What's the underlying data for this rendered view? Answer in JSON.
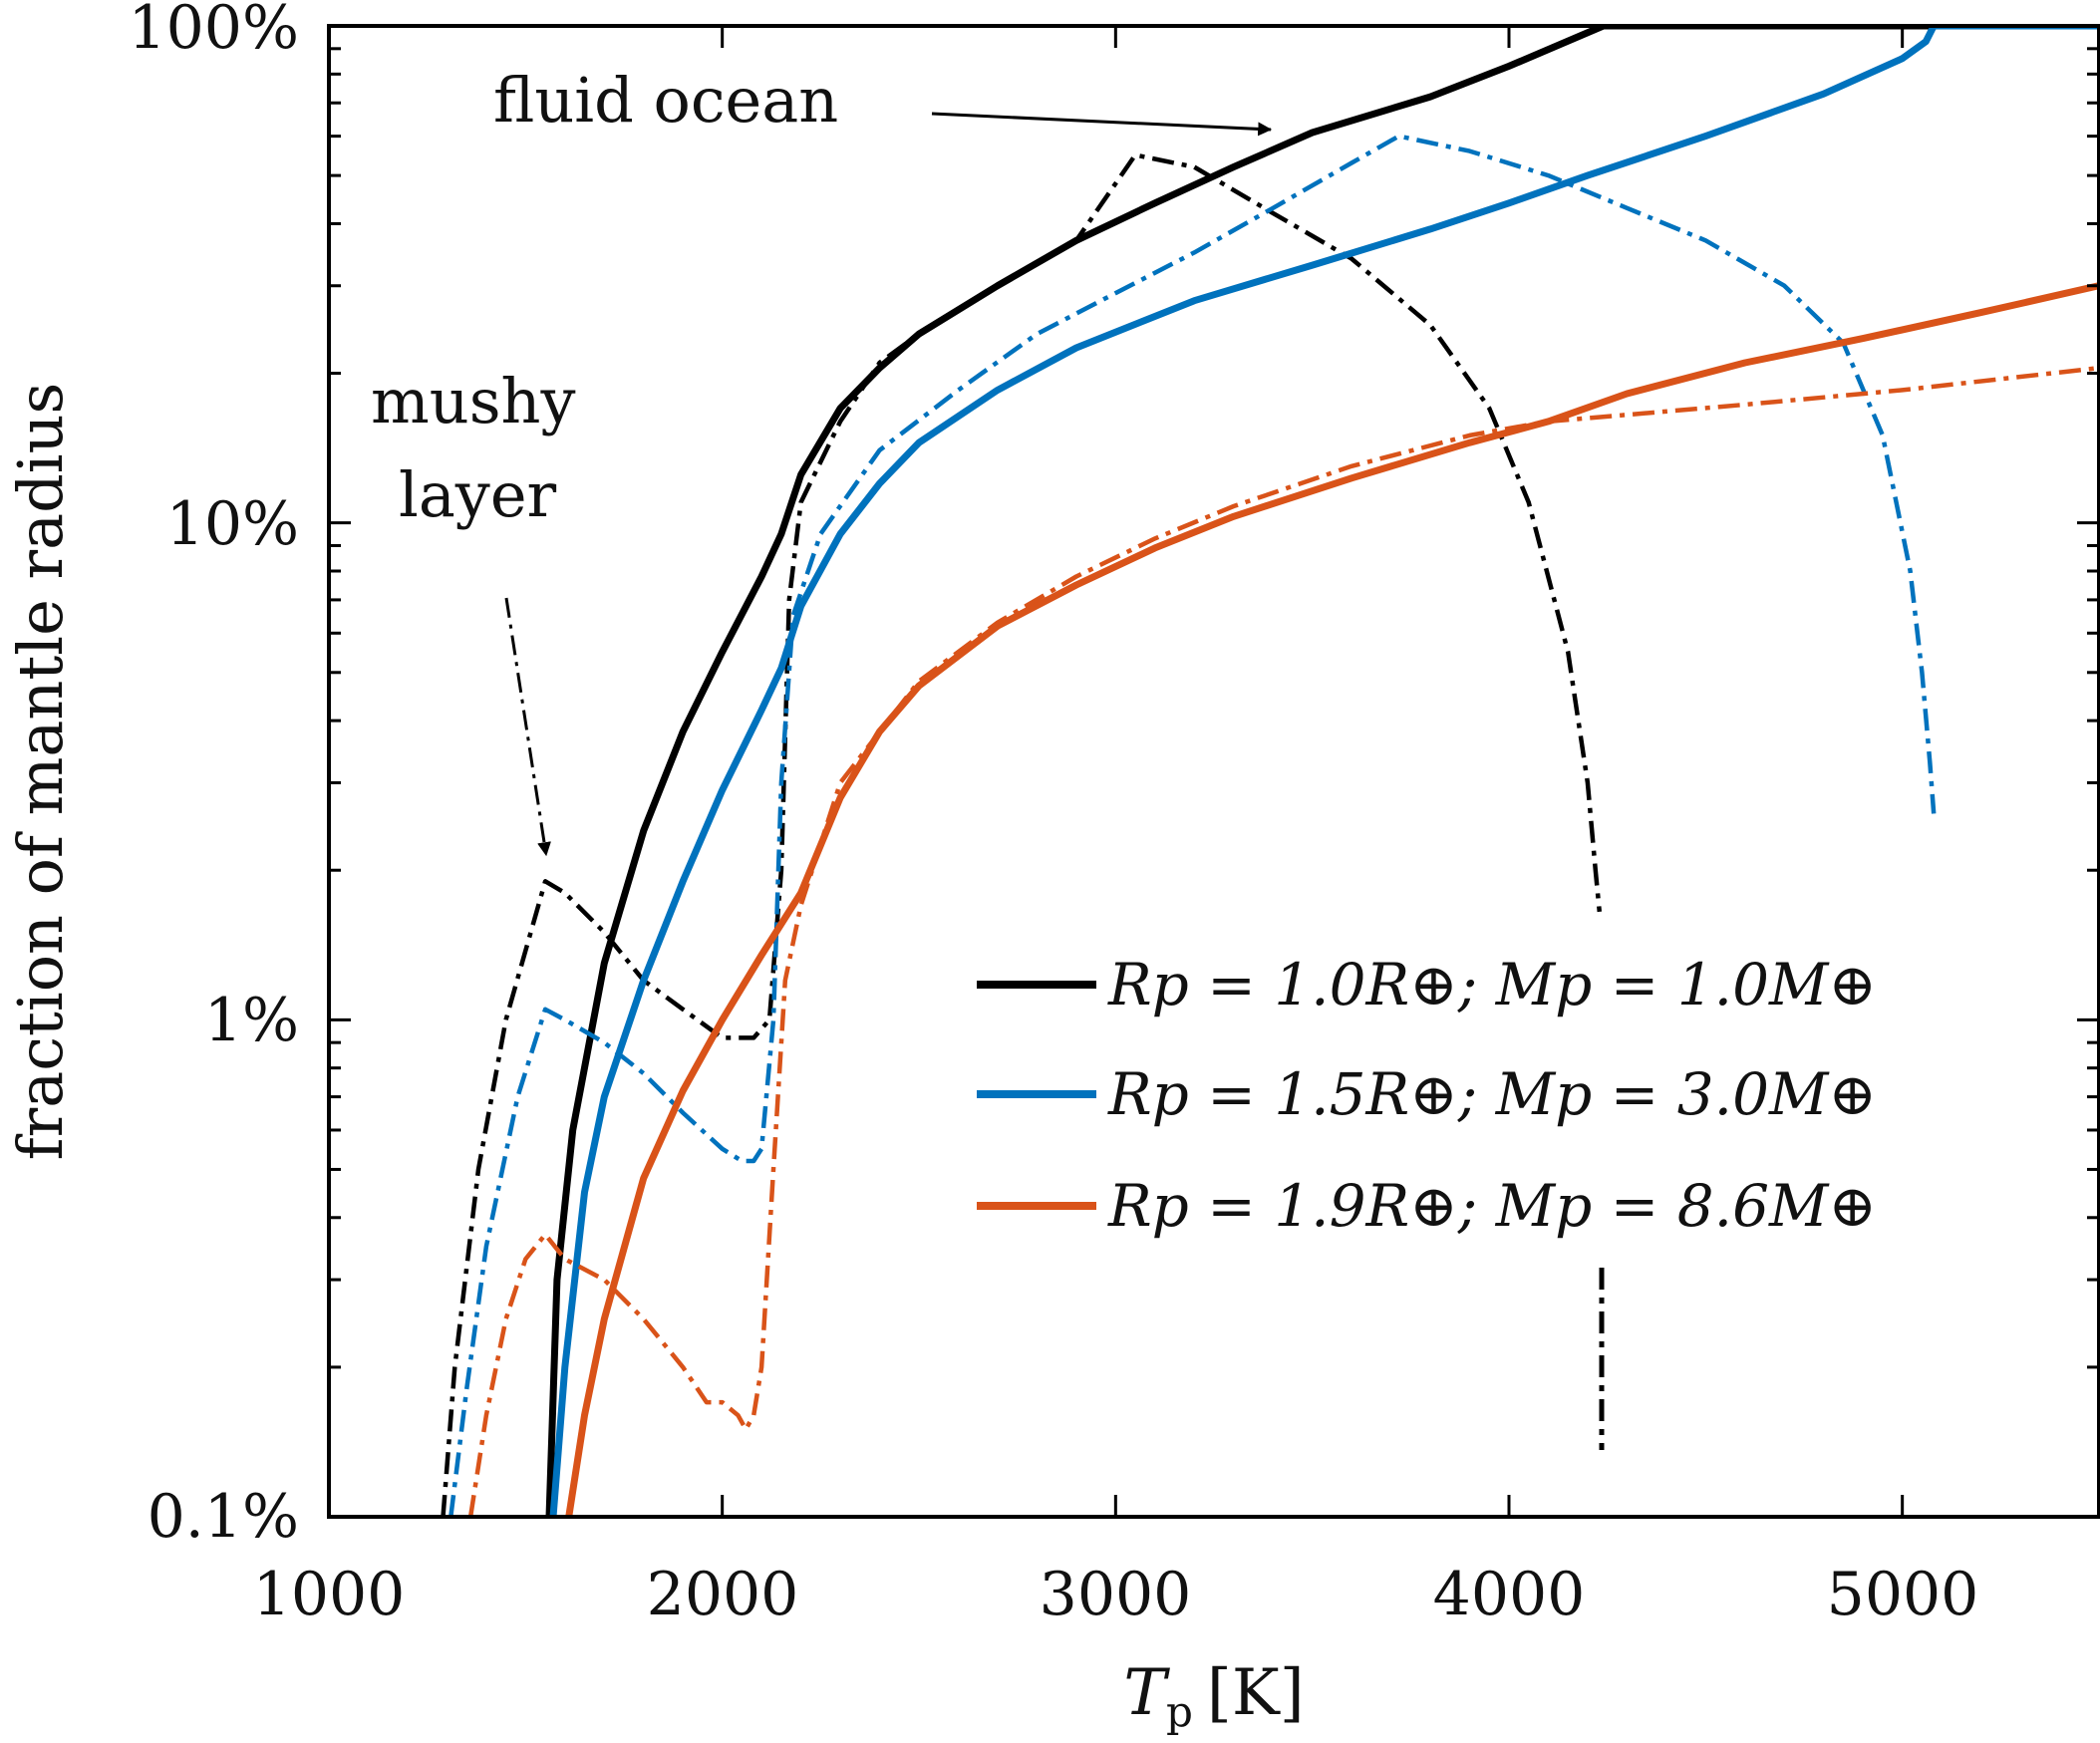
{
  "chart_data": {
    "type": "line",
    "title": "",
    "xlabel": "T_p [K]",
    "xlabel_main": "T",
    "xlabel_sub": "p",
    "xlabel_unit": "[K]",
    "ylabel": "fraction of mantle radius",
    "xlim": [
      1000,
      5500
    ],
    "ylim": [
      0.1,
      100
    ],
    "yscale": "log",
    "x_ticks": [
      1000,
      2000,
      3000,
      4000,
      5000
    ],
    "x_tick_labels": [
      "1000",
      "2000",
      "3000",
      "4000",
      "5000"
    ],
    "y_ticks": [
      0.1,
      1,
      10,
      100
    ],
    "y_tick_labels": [
      "0.1%",
      "1%",
      "10%",
      "100%"
    ],
    "grid": false,
    "legend_position": "lower-right",
    "annotations": [
      {
        "id": "fluid_ocean",
        "lines": [
          "fluid ocean"
        ]
      },
      {
        "id": "mushy_layer",
        "lines": [
          "mushy",
          "layer"
        ]
      }
    ],
    "series": [
      {
        "name": "R_p = 1.0R⊕; M_p = 1.0M⊕",
        "legend_label": "Rp = 1.0R⊕; Mp = 1.0M⊕",
        "color": "#000000",
        "style": "solid",
        "layer": "fluid ocean",
        "x": [
          1560,
          1580,
          1620,
          1700,
          1800,
          1900,
          2000,
          2100,
          2150,
          2200,
          2300,
          2400,
          2500,
          2700,
          2900,
          3100,
          3300,
          3500,
          3800,
          4000,
          4240,
          5500
        ],
        "y": [
          0.1,
          0.3,
          0.6,
          1.3,
          2.4,
          3.8,
          5.5,
          7.8,
          9.5,
          12.5,
          17,
          20.5,
          24,
          30,
          37,
          44,
          52,
          61,
          72,
          83,
          100,
          100
        ]
      },
      {
        "name": "R_p = 1.0R⊕; M_p = 1.0M⊕ mushy",
        "legend_label": "",
        "color": "#000000",
        "style": "dashdot",
        "layer": "mushy layer",
        "x": [
          1290,
          1320,
          1380,
          1450,
          1550,
          1600,
          1700,
          1800,
          1900,
          2000,
          2080,
          2120,
          2150,
          2170,
          2200,
          2300,
          2400,
          2500,
          2700,
          2900,
          3050,
          3200,
          3400,
          3600,
          3800,
          3950,
          4050,
          4150,
          4200,
          4220,
          4230
        ],
        "y": [
          0.1,
          0.2,
          0.5,
          1.0,
          1.9,
          1.8,
          1.5,
          1.2,
          1.05,
          0.92,
          0.92,
          1.0,
          2.0,
          7.0,
          11,
          16,
          21,
          24,
          30,
          37,
          55,
          52,
          42,
          34,
          25,
          17,
          11,
          5.5,
          3.0,
          2.0,
          1.65
        ]
      },
      {
        "name": "R_p = 1.5R⊕; M_p = 3.0M⊕",
        "legend_label": "Rp = 1.5R⊕; Mp = 3.0M⊕",
        "color": "#0072bd",
        "style": "solid",
        "layer": "fluid ocean",
        "x": [
          1570,
          1600,
          1650,
          1700,
          1800,
          1900,
          2000,
          2100,
          2150,
          2200,
          2300,
          2400,
          2500,
          2700,
          2900,
          3200,
          3500,
          3800,
          4000,
          4200,
          4500,
          4800,
          5000,
          5060,
          5080,
          5500
        ],
        "y": [
          0.1,
          0.2,
          0.45,
          0.7,
          1.2,
          1.9,
          2.9,
          4.2,
          5.1,
          6.8,
          9.5,
          12,
          14.5,
          18.5,
          22.5,
          28,
          33,
          39,
          44,
          50,
          60,
          73,
          86,
          93,
          100,
          100
        ]
      },
      {
        "name": "R_p = 1.5R⊕; M_p = 3.0M⊕ mushy",
        "legend_label": "",
        "color": "#0072bd",
        "style": "dashdot",
        "layer": "mushy layer",
        "x": [
          1310,
          1350,
          1400,
          1480,
          1550,
          1600,
          1700,
          1800,
          1900,
          2000,
          2050,
          2080,
          2100,
          2130,
          2150,
          2180,
          2250,
          2400,
          2600,
          2800,
          3000,
          3200,
          3400,
          3600,
          3720,
          3900,
          4100,
          4300,
          4500,
          4700,
          4850,
          4950,
          5020,
          5050,
          5070,
          5080
        ],
        "y": [
          0.1,
          0.18,
          0.35,
          0.7,
          1.05,
          1.0,
          0.9,
          0.78,
          0.65,
          0.55,
          0.52,
          0.52,
          0.55,
          1.0,
          3.0,
          6.5,
          9.5,
          14,
          18.5,
          24,
          29,
          35,
          43,
          53,
          60,
          56,
          50,
          43,
          37,
          30,
          23,
          15,
          8.0,
          5.0,
          3.3,
          2.6
        ]
      },
      {
        "name": "R_p = 1.9R⊕; M_p = 8.6M⊕",
        "legend_label": "Rp = 1.9R⊕; Mp = 8.6M⊕",
        "color": "#d95319",
        "style": "solid",
        "layer": "fluid ocean",
        "x": [
          1610,
          1650,
          1700,
          1800,
          1900,
          2000,
          2100,
          2200,
          2300,
          2400,
          2500,
          2700,
          2900,
          3100,
          3300,
          3600,
          3900,
          4100,
          4300,
          4600,
          4900,
          5200,
          5500
        ],
        "y": [
          0.1,
          0.16,
          0.25,
          0.48,
          0.72,
          1.0,
          1.35,
          1.8,
          2.8,
          3.8,
          4.7,
          6.2,
          7.5,
          8.9,
          10.3,
          12.3,
          14.5,
          16,
          18.2,
          21,
          23.5,
          26.5,
          30
        ]
      },
      {
        "name": "R_p = 1.9R⊕; M_p = 8.6M⊕ mushy",
        "legend_label": "",
        "color": "#d95319",
        "style": "dashdot",
        "layer": "mushy layer",
        "x": [
          1360,
          1400,
          1450,
          1500,
          1550,
          1600,
          1700,
          1800,
          1900,
          1960,
          2000,
          2040,
          2060,
          2080,
          2100,
          2130,
          2160,
          2200,
          2300,
          2500,
          2700,
          2900,
          3100,
          3300,
          3600,
          3900,
          4100,
          4300,
          4600,
          5000,
          5500
        ],
        "y": [
          0.1,
          0.16,
          0.25,
          0.33,
          0.37,
          0.33,
          0.3,
          0.25,
          0.2,
          0.17,
          0.17,
          0.16,
          0.15,
          0.16,
          0.2,
          0.5,
          1.2,
          1.7,
          3.0,
          4.8,
          6.3,
          7.8,
          9.3,
          10.8,
          13,
          15,
          16,
          16.5,
          17.3,
          18.5,
          20.5
        ]
      }
    ]
  }
}
